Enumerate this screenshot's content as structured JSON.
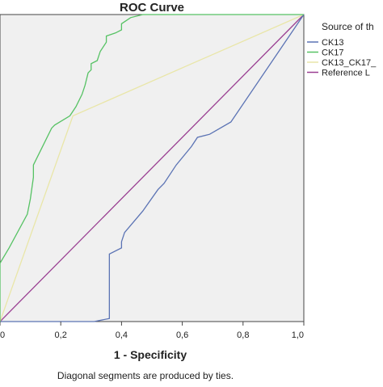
{
  "chart_data": {
    "type": "line",
    "title": "ROC Curve",
    "xlabel": "1 - Specificity",
    "ylabel": "",
    "xlim": [
      0,
      1
    ],
    "ylim": [
      0,
      1
    ],
    "xticks": [
      "0",
      "0,2",
      "0,4",
      "0,6",
      "0,8",
      "1,0"
    ],
    "grid": false,
    "legend": {
      "title": "Source of th",
      "placement": "right"
    },
    "footnote": "Diagonal segments are produced by ties.",
    "series": [
      {
        "name": "CK13",
        "color": "#5b73b4",
        "points": [
          [
            0.0,
            0.0
          ],
          [
            0.31,
            0.0
          ],
          [
            0.36,
            0.01
          ],
          [
            0.36,
            0.22
          ],
          [
            0.4,
            0.24
          ],
          [
            0.4,
            0.26
          ],
          [
            0.41,
            0.29
          ],
          [
            0.47,
            0.36
          ],
          [
            0.52,
            0.43
          ],
          [
            0.54,
            0.45
          ],
          [
            0.58,
            0.51
          ],
          [
            0.63,
            0.57
          ],
          [
            0.65,
            0.6
          ],
          [
            0.69,
            0.61
          ],
          [
            0.76,
            0.65
          ],
          [
            1.0,
            1.0
          ]
        ]
      },
      {
        "name": "CK17",
        "color": "#56c264",
        "points": [
          [
            0.0,
            0.0
          ],
          [
            0.0,
            0.19
          ],
          [
            0.03,
            0.24
          ],
          [
            0.09,
            0.35
          ],
          [
            0.1,
            0.4
          ],
          [
            0.11,
            0.47
          ],
          [
            0.11,
            0.51
          ],
          [
            0.17,
            0.63
          ],
          [
            0.18,
            0.64
          ],
          [
            0.23,
            0.67
          ],
          [
            0.25,
            0.7
          ],
          [
            0.27,
            0.74
          ],
          [
            0.28,
            0.77
          ],
          [
            0.29,
            0.81
          ],
          [
            0.3,
            0.82
          ],
          [
            0.3,
            0.84
          ],
          [
            0.32,
            0.85
          ],
          [
            0.33,
            0.88
          ],
          [
            0.35,
            0.91
          ],
          [
            0.35,
            0.93
          ],
          [
            0.38,
            0.94
          ],
          [
            0.4,
            0.95
          ],
          [
            0.4,
            0.97
          ],
          [
            0.43,
            0.99
          ],
          [
            0.47,
            1.0
          ],
          [
            1.0,
            1.0
          ]
        ]
      },
      {
        "name": "CK13_CK17_",
        "color": "#e9e6a8",
        "points": [
          [
            0.0,
            0.0
          ],
          [
            0.24,
            0.67
          ],
          [
            1.0,
            1.0
          ]
        ]
      },
      {
        "name": "Reference L",
        "color": "#9a3f92",
        "points": [
          [
            0.0,
            0.0
          ],
          [
            1.0,
            1.0
          ]
        ]
      }
    ]
  }
}
